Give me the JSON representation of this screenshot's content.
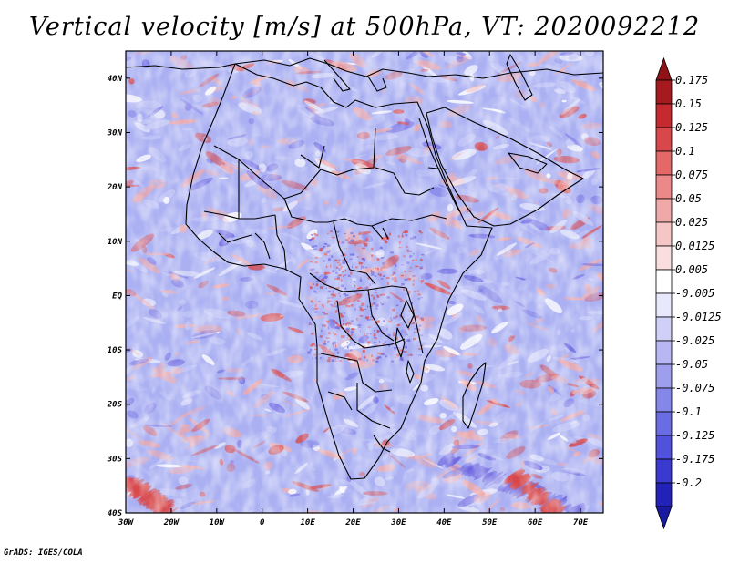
{
  "title": "Vertical velocity [m/s] at 500hPa, VT: 2020092212",
  "credit": "GrADS: IGES/COLA",
  "map": {
    "lon_range": [
      -30,
      75
    ],
    "lat_range": [
      -40,
      45
    ],
    "x_ticks": [
      {
        "lon": -30,
        "label": "30W"
      },
      {
        "lon": -20,
        "label": "20W"
      },
      {
        "lon": -10,
        "label": "10W"
      },
      {
        "lon": 0,
        "label": "0"
      },
      {
        "lon": 10,
        "label": "10E"
      },
      {
        "lon": 20,
        "label": "20E"
      },
      {
        "lon": 30,
        "label": "30E"
      },
      {
        "lon": 40,
        "label": "40E"
      },
      {
        "lon": 50,
        "label": "50E"
      },
      {
        "lon": 60,
        "label": "60E"
      },
      {
        "lon": 70,
        "label": "70E"
      }
    ],
    "y_ticks": [
      {
        "lat": 40,
        "label": "40N"
      },
      {
        "lat": 30,
        "label": "30N"
      },
      {
        "lat": 20,
        "label": "20N"
      },
      {
        "lat": 10,
        "label": "10N"
      },
      {
        "lat": 0,
        "label": "EQ"
      },
      {
        "lat": -10,
        "label": "10S"
      },
      {
        "lat": -20,
        "label": "20S"
      },
      {
        "lat": -30,
        "label": "30S"
      },
      {
        "lat": -40,
        "label": "40S"
      }
    ],
    "field_colors": {
      "background": "#aab0f2",
      "strong_up": "#d8484a",
      "weak_up": "#f0a8a8",
      "strong_down": "#6a64e0",
      "weak_down": "#c4c8f6"
    }
  },
  "colorbar": {
    "levels": [
      "0.175",
      "0.15",
      "0.125",
      "0.1",
      "0.075",
      "0.05",
      "0.025",
      "0.0125",
      "0.005",
      "-0.005",
      "-0.0125",
      "-0.025",
      "-0.05",
      "-0.075",
      "-0.1",
      "-0.125",
      "-0.175",
      "-0.2"
    ],
    "colors": [
      "#a51a1e",
      "#c52a2e",
      "#d8484a",
      "#e46868",
      "#ec8888",
      "#f0a8a8",
      "#f6c6c6",
      "#fadede",
      "#ffffff",
      "#e8e8fc",
      "#cfd0f7",
      "#b7b8f3",
      "#9d9eee",
      "#8586ea",
      "#6a6ce4",
      "#5152dc",
      "#3a3ad0",
      "#2222b8"
    ],
    "top_color": "#8e1216",
    "bottom_color": "#1a1aa0"
  }
}
